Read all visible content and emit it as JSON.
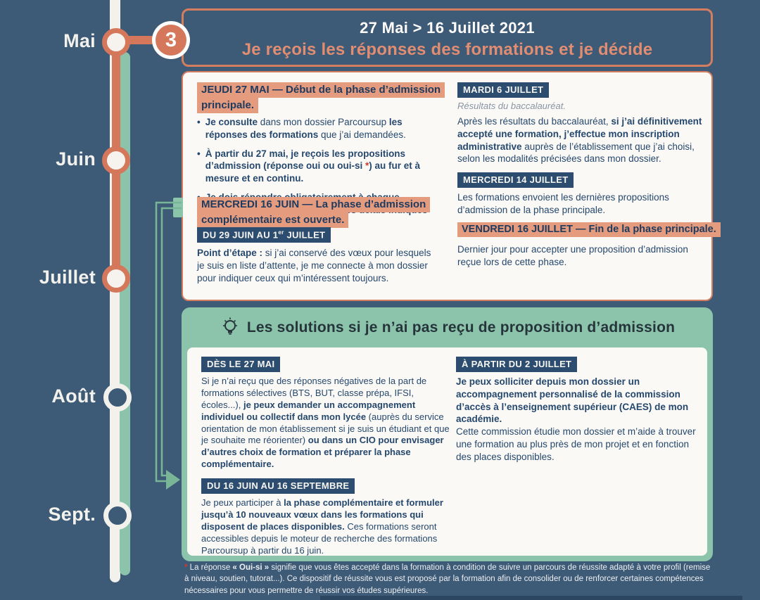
{
  "colors": {
    "background": "#3d5a77",
    "salmon": "#d4775a",
    "salmon_highlight": "#e59c7e",
    "navy_text": "#25486e",
    "badge_background": "#2d4d70",
    "teal": "#8cc4ab",
    "card_background": "#fbf9f5",
    "asterisk_red": "#d03a2a"
  },
  "timeline": {
    "step_number": "3",
    "months": [
      {
        "label": "Mai"
      },
      {
        "label": "Juin"
      },
      {
        "label": "Juillet"
      },
      {
        "label": "Août"
      },
      {
        "label": "Sept."
      }
    ]
  },
  "header": {
    "date_range": "27 Mai > 16 Juillet 2021",
    "title": "Je reçois les réponses des formations et je décide"
  },
  "phase_card": {
    "left": {
      "heading_1": "JEUDI 27 MAI — Début de la phase d’admission principale.",
      "bullets": [
        {
          "segments": [
            {
              "t": "Je consulte",
              "b": true
            },
            {
              "t": " dans mon dossier Parcoursup "
            },
            {
              "t": "les réponses des formations",
              "b": true
            },
            {
              "t": " que j’ai demandées."
            }
          ]
        },
        {
          "segments": [
            {
              "t": "À partir du 27 mai, je reçois les propositions d’admission (réponse oui ou oui-si",
              "b": true
            },
            {
              "t": " *",
              "b": true,
              "c": "red"
            },
            {
              "t": ") au fur et à mesure et en continu.",
              "b": true
            }
          ]
        },
        {
          "segments": [
            {
              "t": "Je dois répondre obligatoirement à chaque proposition d’admission dans les délais indiqués dans mon dossier.",
              "b": true
            }
          ]
        }
      ],
      "heading_2": "MERCREDI 16 JUIN — La phase d’admission complémentaire est ouverte.",
      "badge": {
        "segments": [
          {
            "t": "DU 29 JUIN AU 1"
          },
          {
            "t": "er",
            "sup": true
          },
          {
            "t": " JUILLET"
          }
        ]
      },
      "paragraph": {
        "segments": [
          {
            "t": "Point d’étape :",
            "b": true
          },
          {
            "t": " si j’ai conservé des vœux pour lesquels je suis en liste d’attente, je me connecte à mon dossier pour indiquer ceux qui m’intéressent toujours."
          }
        ]
      }
    },
    "right": {
      "badge_1": "MARDI 6 JUILLET",
      "note": "Résultats du baccalauréat.",
      "paragraph_1": {
        "segments": [
          {
            "t": "Après les résultats du baccalauréat, "
          },
          {
            "t": "si j’ai définitivement accepté une formation, j’effectue mon inscription administrative",
            "b": true
          },
          {
            "t": " auprès de l’établissement que j’ai choisi, selon les modalités précisées dans mon dossier."
          }
        ]
      },
      "badge_2": "MERCREDI 14 JUILLET",
      "paragraph_2": "Les formations envoient les dernières propositions d’admission de la phase principale.",
      "heading": "VENDREDI 16 JUILLET — Fin de la phase principale.",
      "paragraph_3": "Dernier jour pour accepter une proposition d’admission reçue lors de cette phase."
    }
  },
  "solutions_card": {
    "title": "Les solutions si je n’ai pas reçu de proposition d’admission",
    "left": {
      "badge_1": "DÈS LE 27 MAI",
      "paragraph_1": {
        "segments": [
          {
            "t": "Si je n’ai reçu que des réponses négatives de la part de formations sélectives (BTS, BUT, classe prépa, IFSI, écoles...), "
          },
          {
            "t": "je peux demander un accompagnement individuel ou collectif dans mon lycée",
            "b": true
          },
          {
            "t": " (auprès du service orientation de mon établissement si je suis un étudiant et que je souhaite me réorienter) "
          },
          {
            "t": "ou dans un CIO pour envisager d’autres choix de formation et préparer la phase complémentaire.",
            "b": true
          }
        ]
      },
      "badge_2": "DU 16 JUIN AU 16 SEPTEMBRE",
      "paragraph_2": {
        "segments": [
          {
            "t": "Je peux participer à "
          },
          {
            "t": "la phase complémentaire et formuler jusqu’à 10 nouveaux vœux dans les formations qui disposent de places disponibles.",
            "b": true
          },
          {
            "t": " Ces formations seront accessibles depuis le moteur de recherche des formations Parcoursup à partir du 16 juin."
          }
        ]
      }
    },
    "right": {
      "badge": "À PARTIR DU 2 JUILLET",
      "paragraph": {
        "segments": [
          {
            "t": "Je peux solliciter depuis mon dossier un accompagnement personnalisé de la commission d’accès à l’enseignement supérieur (CAES) de mon académie.",
            "b": true
          },
          {
            "t": "\nCette commission étudie mon dossier et m’aide à trouver une formation au plus près de mon projet et en fonction des places disponibles."
          }
        ]
      }
    }
  },
  "footnote": {
    "segments": [
      {
        "t": "* ",
        "b": true,
        "c": "red"
      },
      {
        "t": "La réponse "
      },
      {
        "t": "« Oui-si »",
        "b": true
      },
      {
        "t": " signifie que vous êtes accepté dans la formation à condition de suivre un parcours de réussite adapté à votre profil (remise à niveau, soutien, tutorat...). Ce dispositif de réussite vous est proposé par la formation afin de consolider ou de renforcer certaines compétences nécessaires pour vous permettre de réussir vos études supérieures."
      }
    ]
  }
}
